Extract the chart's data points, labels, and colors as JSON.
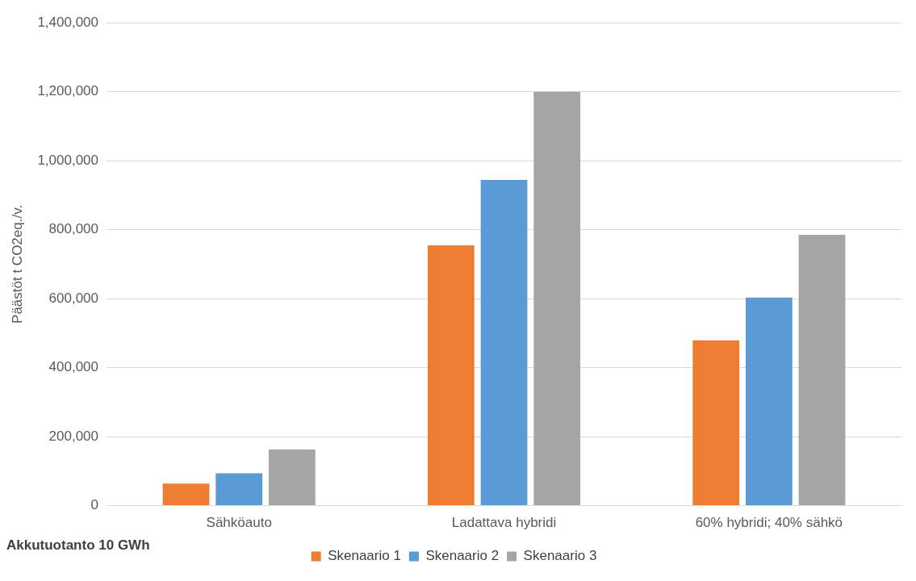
{
  "chart_data": {
    "type": "bar",
    "ylabel": "Päästöt t CO2eq./v.",
    "categories": [
      "Sähköauto",
      "Ladattava hybridi",
      "60% hybridi; 40% sähkö"
    ],
    "series": [
      {
        "name": "Skenaario 1",
        "color": "#ed7d31",
        "values": [
          64000,
          755000,
          479000
        ]
      },
      {
        "name": "Skenaario 2",
        "color": "#5b9bd5",
        "values": [
          94000,
          944000,
          603000
        ]
      },
      {
        "name": "Skenaario 3",
        "color": "#a5a5a5",
        "values": [
          163000,
          1200000,
          785000
        ]
      }
    ],
    "ylim": [
      0,
      1400000
    ],
    "yticks": [
      {
        "value": 0,
        "label": "0"
      },
      {
        "value": 200000,
        "label": "200,000"
      },
      {
        "value": 400000,
        "label": "400,000"
      },
      {
        "value": 600000,
        "label": "600,000"
      },
      {
        "value": 800000,
        "label": "800,000"
      },
      {
        "value": 1000000,
        "label": "1,000,000"
      },
      {
        "value": 1200000,
        "label": "1,200,000"
      },
      {
        "value": 1400000,
        "label": "1,400,000"
      }
    ],
    "grid": "y",
    "legend": "bottom",
    "annotations": [
      "Akkutuotanto 10 GWh"
    ]
  }
}
